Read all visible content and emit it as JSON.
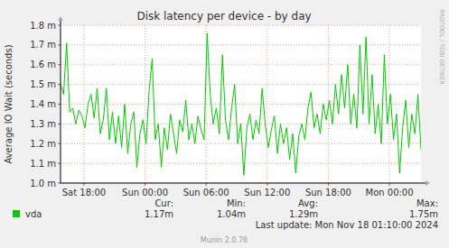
{
  "chart_data": {
    "type": "line",
    "title": "Disk latency per device - by day",
    "y_label": "Average IO Wait (seconds)",
    "x": [
      15.7,
      16.0,
      16.3,
      16.6,
      16.9,
      17.2,
      17.5,
      17.8,
      18.1,
      18.4,
      18.7,
      19.0,
      19.3,
      19.6,
      19.9,
      20.2,
      20.5,
      20.8,
      21.1,
      21.4,
      21.7,
      22.0,
      22.3,
      22.6,
      22.9,
      23.2,
      23.5,
      23.8,
      24.1,
      24.4,
      24.7,
      25.0,
      25.3,
      25.6,
      25.9,
      26.2,
      26.5,
      26.8,
      27.1,
      27.4,
      27.7,
      28.0,
      28.3,
      28.6,
      28.9,
      29.2,
      29.5,
      29.8,
      30.1,
      30.4,
      30.7,
      31.0,
      31.3,
      31.6,
      31.9,
      32.2,
      32.5,
      32.8,
      33.1,
      33.4,
      33.7,
      34.0,
      34.3,
      34.6,
      34.9,
      35.2,
      35.5,
      35.8,
      36.1,
      36.4,
      36.7,
      37.0,
      37.3,
      37.6,
      37.9,
      38.2,
      38.5,
      38.8,
      39.1,
      39.4,
      39.7,
      40.0,
      40.3,
      40.6,
      40.9,
      41.2,
      41.5,
      41.8,
      42.1,
      42.4,
      42.7,
      43.0,
      43.3,
      43.6,
      43.9,
      44.2,
      44.5,
      44.8,
      45.1,
      45.4,
      45.7,
      46.0,
      46.3,
      46.6,
      46.9,
      47.2,
      47.5,
      47.8,
      48.1,
      48.4,
      48.7,
      49.0,
      49.3,
      49.6,
      49.9,
      50.2,
      50.5,
      50.8,
      51.1
    ],
    "series": [
      {
        "name": "vda",
        "color": "#00cc00",
        "values": [
          1.5,
          1.45,
          1.71,
          1.36,
          1.38,
          1.3,
          1.37,
          1.34,
          1.28,
          1.4,
          1.45,
          1.33,
          1.48,
          1.25,
          1.32,
          1.48,
          1.22,
          1.36,
          1.2,
          1.34,
          1.18,
          1.4,
          1.15,
          1.3,
          1.36,
          1.08,
          1.25,
          1.32,
          1.2,
          1.47,
          1.63,
          1.22,
          1.3,
          1.08,
          1.28,
          1.17,
          1.35,
          1.25,
          1.15,
          1.32,
          1.26,
          1.42,
          1.22,
          1.3,
          1.2,
          1.34,
          1.27,
          1.22,
          1.76,
          1.45,
          1.3,
          1.38,
          1.25,
          1.65,
          1.32,
          1.22,
          1.38,
          1.5,
          1.2,
          1.3,
          1.04,
          1.28,
          1.35,
          1.22,
          1.32,
          1.25,
          1.48,
          1.3,
          1.18,
          1.27,
          1.34,
          1.15,
          1.3,
          1.2,
          1.28,
          1.12,
          1.25,
          1.05,
          1.24,
          1.3,
          1.22,
          1.38,
          1.46,
          1.28,
          1.35,
          1.25,
          1.4,
          1.32,
          1.42,
          1.3,
          1.5,
          1.35,
          1.55,
          1.38,
          1.6,
          1.3,
          1.45,
          1.28,
          1.7,
          1.35,
          1.74,
          1.3,
          1.55,
          1.25,
          1.4,
          1.2,
          1.65,
          1.3,
          1.45,
          1.22,
          1.35,
          1.05,
          1.28,
          1.42,
          1.18,
          1.35,
          1.25,
          1.45,
          1.17
        ]
      }
    ],
    "xlim": [
      15.7,
      51.1
    ],
    "xticks": [
      {
        "value": 18,
        "label": "Sat 18:00"
      },
      {
        "value": 24,
        "label": "Sun 00:00"
      },
      {
        "value": 30,
        "label": "Sun 06:00"
      },
      {
        "value": 36,
        "label": "Sun 12:00"
      },
      {
        "value": 42,
        "label": "Sun 18:00"
      },
      {
        "value": 48,
        "label": "Mon 00:00"
      }
    ],
    "ylim": [
      1.0,
      1.8
    ],
    "yticks": [
      {
        "value": 1.0,
        "label": "1.0 m"
      },
      {
        "value": 1.1,
        "label": "1.1 m"
      },
      {
        "value": 1.2,
        "label": "1.2 m"
      },
      {
        "value": 1.3,
        "label": "1.3 m"
      },
      {
        "value": 1.4,
        "label": "1.4 m"
      },
      {
        "value": 1.5,
        "label": "1.5 m"
      },
      {
        "value": 1.6,
        "label": "1.6 m"
      },
      {
        "value": 1.7,
        "label": "1.7 m"
      },
      {
        "value": 1.8,
        "label": "1.8 m"
      }
    ],
    "grid": true,
    "legend": "bottom",
    "stats": {
      "labels": [
        "Cur:",
        "Min:",
        "Avg:",
        "Max:"
      ],
      "values": [
        1.17,
        1.04,
        1.29,
        1.75
      ],
      "value_labels": [
        "1.17m",
        "1.04m",
        "1.29m",
        "1.75m"
      ]
    },
    "last_update": "Last update: Mon Nov 18 01:10:00 2024",
    "version": "Munin 2.0.76",
    "credit": "RRDTOOL / TOBI OETIKER"
  }
}
